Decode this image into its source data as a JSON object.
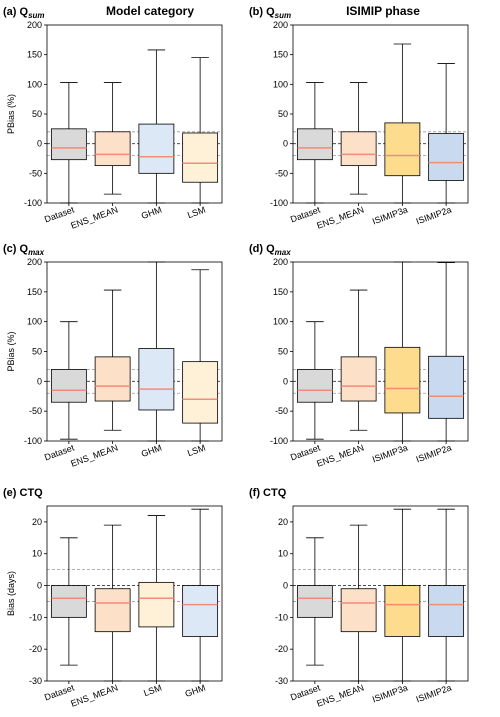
{
  "column_titles": [
    "Model category",
    "ISIMIP phase"
  ],
  "chart_data": [
    {
      "type": "box",
      "title": "(a) Q",
      "title_sub": "sum",
      "ylabel": "PBias (%)",
      "ylim": [
        -100,
        200
      ],
      "yticks": [
        -100,
        -50,
        0,
        50,
        100,
        150,
        200
      ],
      "ref_lines": [
        -20,
        0,
        20
      ],
      "boxes": [
        {
          "name": "Dataset",
          "color": "#d9d9d9",
          "whislo": -100,
          "q1": -27,
          "med": -7,
          "q3": 25,
          "whishi": 103
        },
        {
          "name": "ENS_MEAN",
          "color": "#fde0c8",
          "whislo": -85,
          "q1": -37,
          "med": -18,
          "q3": 20,
          "whishi": 103
        },
        {
          "name": "GHM",
          "color": "#dce8f6",
          "whislo": -100,
          "q1": -50,
          "med": -22,
          "q3": 33,
          "whishi": 158
        },
        {
          "name": "LSM",
          "color": "#fff0d8",
          "whislo": -100,
          "q1": -65,
          "med": -33,
          "q3": 18,
          "whishi": 145
        }
      ]
    },
    {
      "type": "box",
      "title": "(b) Q",
      "title_sub": "sum",
      "ylim": [
        -100,
        200
      ],
      "yticks": [
        -100,
        -50,
        0,
        50,
        100,
        150,
        200
      ],
      "ref_lines": [
        -20,
        0,
        20
      ],
      "boxes": [
        {
          "name": "Dataset",
          "color": "#d9d9d9",
          "whislo": -100,
          "q1": -27,
          "med": -7,
          "q3": 25,
          "whishi": 103
        },
        {
          "name": "ENS_MEAN",
          "color": "#fde0c8",
          "whislo": -85,
          "q1": -37,
          "med": -18,
          "q3": 20,
          "whishi": 103
        },
        {
          "name": "ISIMIP3a",
          "color": "#fddc8e",
          "whislo": -100,
          "q1": -54,
          "med": -20,
          "q3": 35,
          "whishi": 168
        },
        {
          "name": "ISIMIP2a",
          "color": "#c9daf0",
          "whislo": -100,
          "q1": -62,
          "med": -32,
          "q3": 17,
          "whishi": 135
        }
      ]
    },
    {
      "type": "box",
      "title": "(c) Q",
      "title_sub": "max",
      "ylabel": "PBias (%)",
      "ylim": [
        -100,
        200
      ],
      "yticks": [
        -100,
        -50,
        0,
        50,
        100,
        150,
        200
      ],
      "ref_lines": [
        -20,
        0,
        20
      ],
      "boxes": [
        {
          "name": "Dataset",
          "color": "#d9d9d9",
          "whislo": -97,
          "q1": -35,
          "med": -15,
          "q3": 20,
          "whishi": 100
        },
        {
          "name": "ENS_MEAN",
          "color": "#fde0c8",
          "whislo": -82,
          "q1": -33,
          "med": -8,
          "q3": 41,
          "whishi": 153
        },
        {
          "name": "GHM",
          "color": "#dce8f6",
          "whislo": -100,
          "q1": -48,
          "med": -13,
          "q3": 55,
          "whishi": 200
        },
        {
          "name": "LSM",
          "color": "#fff0d8",
          "whislo": -100,
          "q1": -70,
          "med": -30,
          "q3": 33,
          "whishi": 187
        }
      ]
    },
    {
      "type": "box",
      "title": "(d) Q",
      "title_sub": "max",
      "ylim": [
        -100,
        200
      ],
      "yticks": [
        -100,
        -50,
        0,
        50,
        100,
        150,
        200
      ],
      "ref_lines": [
        -20,
        0,
        20
      ],
      "boxes": [
        {
          "name": "Dataset",
          "color": "#d9d9d9",
          "whislo": -97,
          "q1": -35,
          "med": -15,
          "q3": 20,
          "whishi": 100
        },
        {
          "name": "ENS_MEAN",
          "color": "#fde0c8",
          "whislo": -82,
          "q1": -33,
          "med": -8,
          "q3": 41,
          "whishi": 153
        },
        {
          "name": "ISIMIP3a",
          "color": "#fddc8e",
          "whislo": -100,
          "q1": -53,
          "med": -12,
          "q3": 57,
          "whishi": 200
        },
        {
          "name": "ISIMIP2a",
          "color": "#c9daf0",
          "whislo": -100,
          "q1": -62,
          "med": -25,
          "q3": 42,
          "whishi": 199
        }
      ]
    },
    {
      "type": "box",
      "title": "(e) CTQ",
      "ylabel": "Bias (days)",
      "ylim": [
        -30,
        25
      ],
      "yticks": [
        -30,
        -20,
        -10,
        0,
        10,
        20
      ],
      "ref_lines": [
        -5,
        0,
        5
      ],
      "boxes": [
        {
          "name": "Dataset",
          "color": "#d9d9d9",
          "whislo": -25,
          "q1": -10,
          "med": -4,
          "q3": 0,
          "whishi": 15
        },
        {
          "name": "ENS_MEAN",
          "color": "#fde0c8",
          "whislo": -30,
          "q1": -14.5,
          "med": -5.5,
          "q3": -1,
          "whishi": 19
        },
        {
          "name": "LSM",
          "color": "#fff0d8",
          "whislo": -30,
          "q1": -13,
          "med": -4,
          "q3": 1,
          "whishi": 22
        },
        {
          "name": "GHM",
          "color": "#dce8f6",
          "whislo": -30,
          "q1": -16,
          "med": -6,
          "q3": 0,
          "whishi": 24
        }
      ]
    },
    {
      "type": "box",
      "title": "(f) CTQ",
      "ylim": [
        -30,
        25
      ],
      "yticks": [
        -30,
        -20,
        -10,
        0,
        10,
        20
      ],
      "ref_lines": [
        -5,
        0,
        5
      ],
      "boxes": [
        {
          "name": "Dataset",
          "color": "#d9d9d9",
          "whislo": -25,
          "q1": -10,
          "med": -4,
          "q3": 0,
          "whishi": 15
        },
        {
          "name": "ENS_MEAN",
          "color": "#fde0c8",
          "whislo": -30,
          "q1": -14.5,
          "med": -5.5,
          "q3": -1,
          "whishi": 19
        },
        {
          "name": "ISIMIP3a",
          "color": "#fddc8e",
          "whislo": -30,
          "q1": -16,
          "med": -6,
          "q3": 0,
          "whishi": 24
        },
        {
          "name": "ISIMIP2a",
          "color": "#c9daf0",
          "whislo": -30,
          "q1": -16,
          "med": -6,
          "q3": 0,
          "whishi": 24
        }
      ]
    }
  ]
}
